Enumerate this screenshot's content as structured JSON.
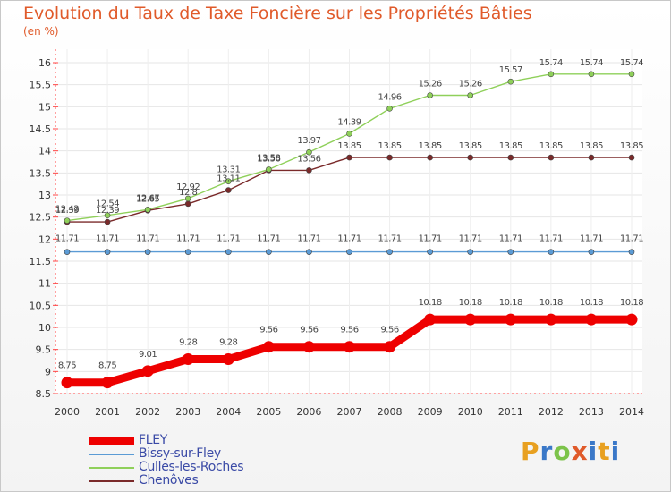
{
  "chart_data": {
    "type": "line",
    "title": "Evolution du Taux de Taxe Foncière sur les Propriétés Bâties",
    "subtitle": "(en %)",
    "xlabel": "",
    "ylabel": "(en %)",
    "ylim": [
      8.5,
      16
    ],
    "y_ticks": [
      "8.5",
      "9",
      "9.5",
      "10",
      "10.5",
      "11",
      "11.5",
      "12",
      "12.5",
      "13",
      "13.5",
      "14",
      "14.5",
      "15",
      "15.5",
      "16"
    ],
    "categories": [
      "2000",
      "2001",
      "2002",
      "2003",
      "2004",
      "2005",
      "2006",
      "2007",
      "2008",
      "2009",
      "2010",
      "2011",
      "2012",
      "2013",
      "2014"
    ],
    "series": [
      {
        "name": "FLEY",
        "color": "#ee0000",
        "values": [
          8.75,
          8.75,
          9.01,
          9.28,
          9.28,
          9.56,
          9.56,
          9.56,
          9.56,
          10.18,
          10.18,
          10.18,
          10.18,
          10.18,
          10.18
        ],
        "labels": [
          "8.75",
          "8.75",
          "9.01",
          "9.28",
          "9.28",
          "9.56",
          "9.56",
          "9.56",
          "9.56",
          "10.18",
          "10.18",
          "10.18",
          "10.18",
          "10.18",
          "10.18"
        ]
      },
      {
        "name": "Bissy-sur-Fley",
        "color": "#5b9bd5",
        "values": [
          11.71,
          11.71,
          11.71,
          11.71,
          11.71,
          11.71,
          11.71,
          11.71,
          11.71,
          11.71,
          11.71,
          11.71,
          11.71,
          11.71,
          11.71
        ],
        "labels": [
          "11.71",
          "11.71",
          "11.71",
          "11.71",
          "11.71",
          "11.71",
          "11.71",
          "11.71",
          "11.71",
          "11.71",
          "11.71",
          "11.71",
          "11.71",
          "11.71",
          "11.71"
        ]
      },
      {
        "name": "Culles-les-Roches",
        "color": "#8fd05a",
        "values": [
          12.42,
          12.54,
          12.67,
          12.92,
          13.31,
          13.58,
          13.97,
          14.39,
          14.96,
          15.26,
          15.26,
          15.57,
          15.74,
          15.74,
          15.74
        ],
        "labels": [
          "12.42",
          "12.54",
          "12.67",
          "12.92",
          "13.31",
          "13.58",
          "13.97",
          "14.39",
          "14.96",
          "15.26",
          "15.26",
          "15.57",
          "15.74",
          "15.74",
          "15.74"
        ]
      },
      {
        "name": "Chenôves",
        "color": "#7a2a2a",
        "values": [
          12.39,
          12.39,
          12.65,
          12.8,
          13.11,
          13.56,
          13.56,
          13.85,
          13.85,
          13.85,
          13.85,
          13.85,
          13.85,
          13.85,
          13.85
        ],
        "labels": [
          "12.39",
          "12.39",
          "12.65",
          "12.8",
          "13.11",
          "13.56",
          "13.56",
          "13.85",
          "13.85",
          "13.85",
          "13.85",
          "13.85",
          "13.85",
          "13.85",
          "13.85"
        ]
      }
    ]
  },
  "logo_text": "Proxiti"
}
